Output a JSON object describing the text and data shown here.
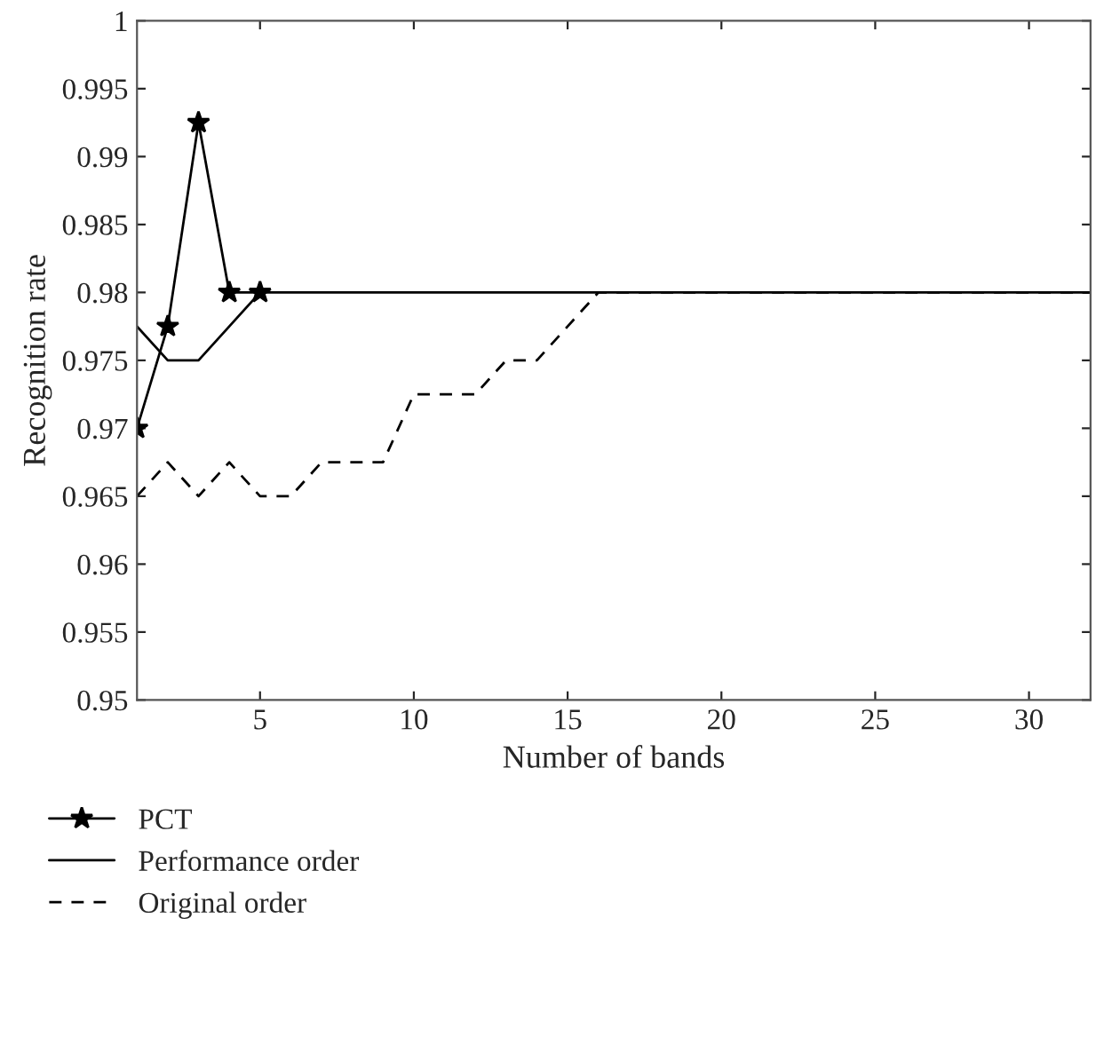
{
  "chart_data": {
    "type": "line",
    "xlabel": "Number of bands",
    "ylabel": "Recognition rate",
    "xlim": [
      1,
      32
    ],
    "xticks": [
      5,
      10,
      15,
      20,
      25,
      30
    ],
    "ylim": [
      0.95,
      1
    ],
    "yticks": [
      0.95,
      0.955,
      0.96,
      0.965,
      0.97,
      0.975,
      0.98,
      0.985,
      0.99,
      0.995,
      1
    ],
    "grid": false,
    "legend": "bottom left",
    "series": [
      {
        "name": "PCT",
        "color": "#000000",
        "marker": "star",
        "line_style": "solid",
        "x": [
          1,
          2,
          3,
          4,
          5
        ],
        "values": [
          0.97,
          0.9775,
          0.9925,
          0.98,
          0.98
        ]
      },
      {
        "name": "Performance order",
        "color": "#000000",
        "marker": "none",
        "line_style": "solid",
        "x": [
          1,
          2,
          3,
          4,
          5,
          32
        ],
        "values": [
          0.9775,
          0.975,
          0.975,
          0.9775,
          0.98,
          0.98
        ]
      },
      {
        "name": "Original order",
        "color": "#000000",
        "marker": "none",
        "line_style": "dashed",
        "x": [
          1,
          2,
          3,
          4,
          5,
          6,
          7,
          8,
          9,
          10,
          11,
          12,
          13,
          14,
          15,
          16,
          32
        ],
        "values": [
          0.965,
          0.9675,
          0.965,
          0.9675,
          0.965,
          0.965,
          0.9675,
          0.9675,
          0.9675,
          0.9725,
          0.9725,
          0.9725,
          0.975,
          0.975,
          0.9775,
          0.98,
          0.98
        ]
      }
    ]
  }
}
